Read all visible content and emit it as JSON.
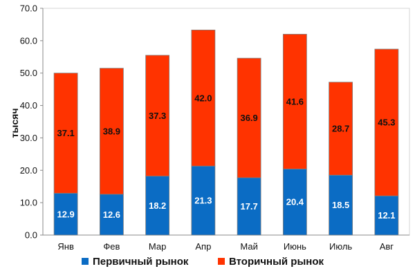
{
  "chart_data": {
    "type": "bar",
    "stacked": true,
    "categories": [
      "Янв",
      "Фев",
      "Мар",
      "Апр",
      "Май",
      "Июнь",
      "Июль",
      "Авг"
    ],
    "series": [
      {
        "name": "Первичный рынок",
        "color": "#0B6CC4",
        "values": [
          12.9,
          12.6,
          18.2,
          21.3,
          17.7,
          20.4,
          18.5,
          12.1
        ],
        "labels": [
          "12.9",
          "12.6",
          "18.2",
          "21.3",
          "17.7",
          "20.4",
          "18.5",
          "12.1"
        ]
      },
      {
        "name": "Вторичный рынок",
        "color": "#FF3300",
        "values": [
          37.1,
          38.9,
          37.3,
          42.0,
          36.9,
          41.6,
          28.7,
          45.3
        ],
        "labels": [
          "37.1",
          "38.9",
          "37.3",
          "42.0",
          "36.9",
          "41.6",
          "28.7",
          "45.3"
        ]
      }
    ],
    "ylabel": "тысяч",
    "xlabel": "",
    "ylim": [
      0,
      70
    ],
    "yticks": [
      "0.0",
      "10.0",
      "20.0",
      "30.0",
      "40.0",
      "50.0",
      "60.0",
      "70.0"
    ],
    "grid": false,
    "legend": "bottom"
  }
}
